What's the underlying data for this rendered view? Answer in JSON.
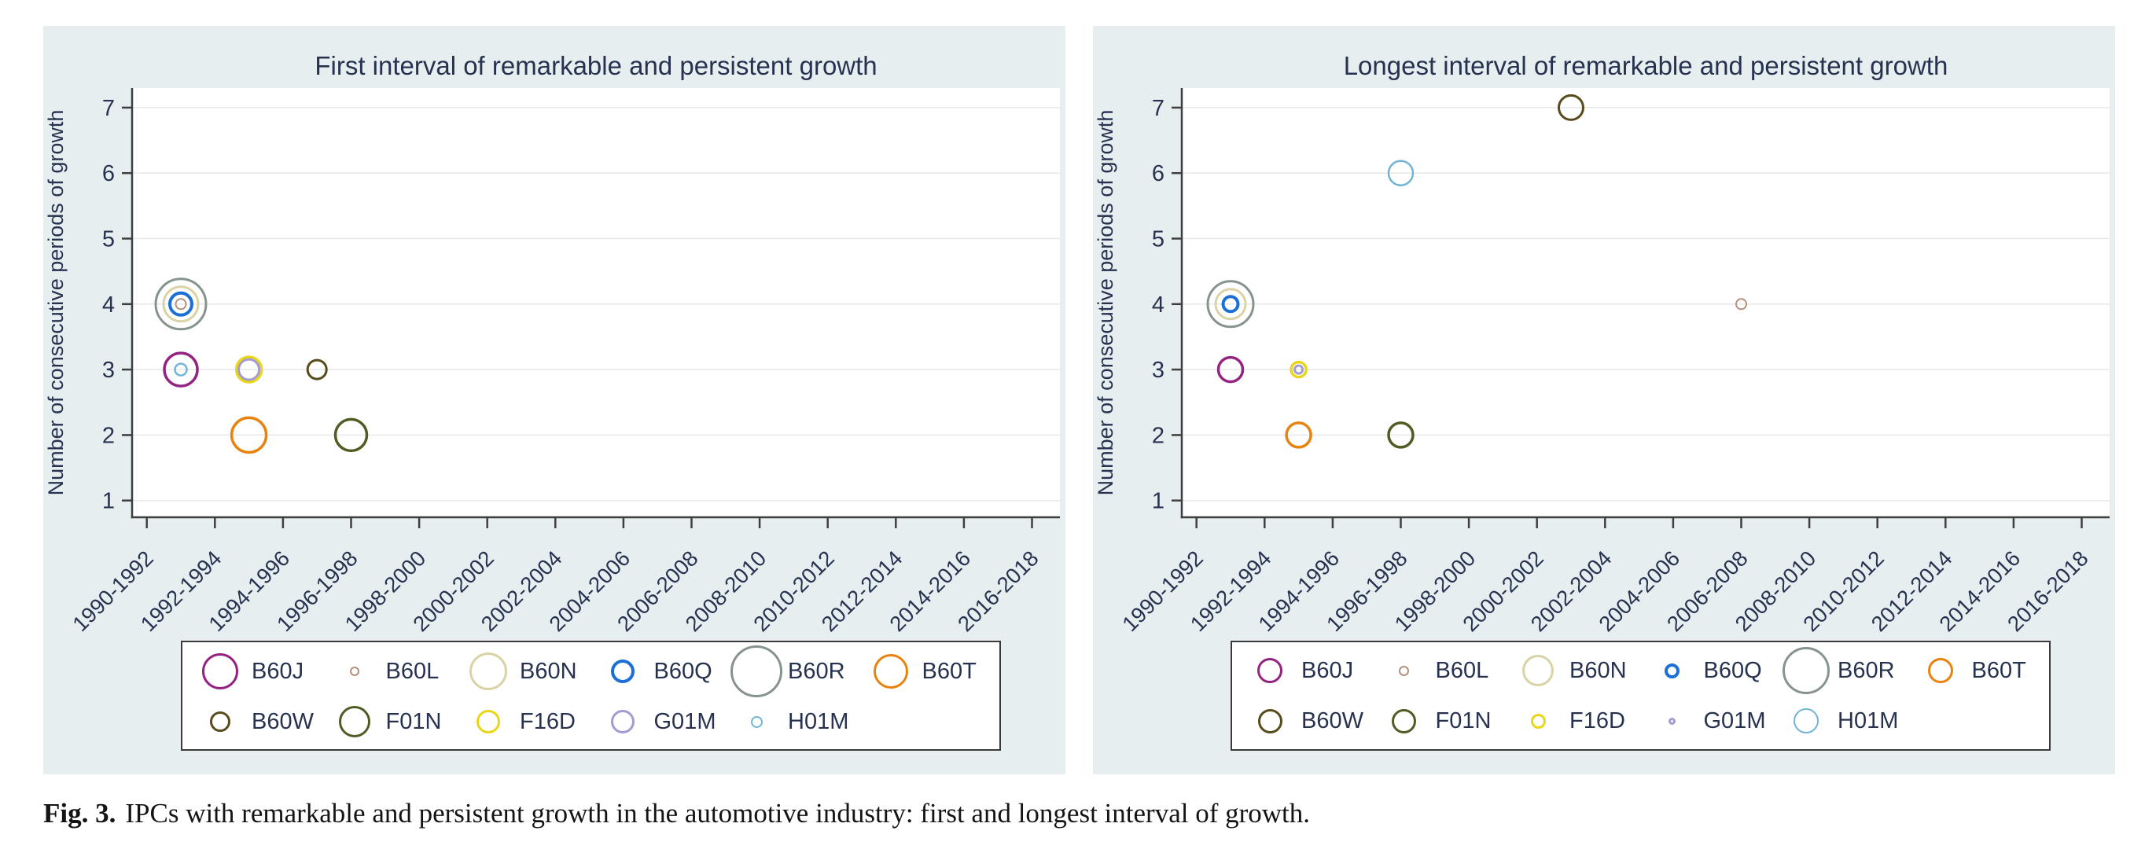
{
  "panel_style": {
    "background": "#e7eef0",
    "plot_background": "#ffffff",
    "grid_color": "#e5eae9",
    "axis_color": "#3f3f3f",
    "text_color": "#26324f",
    "legend_border_color": "#3a3a3a"
  },
  "ipc_styles": {
    "B60J": {
      "color": "#952382",
      "stroke": 3.5
    },
    "B60L": {
      "color": "#b3917f",
      "stroke": 2
    },
    "B60N": {
      "color": "#d9d3a5",
      "stroke": 3
    },
    "B60Q": {
      "color": "#1b6fd6",
      "stroke": 4
    },
    "B60R": {
      "color": "#87948d",
      "stroke": 3
    },
    "B60T": {
      "color": "#e8830f",
      "stroke": 3.5
    },
    "B60W": {
      "color": "#584c1d",
      "stroke": 3
    },
    "F01N": {
      "color": "#4f5d24",
      "stroke": 3.5
    },
    "F16D": {
      "color": "#ead618",
      "stroke": 3.5
    },
    "G01M": {
      "color": "#a39cd2",
      "stroke": 3
    },
    "H01M": {
      "color": "#70b5d6",
      "stroke": 2.5
    }
  },
  "chart_data": [
    {
      "type": "scatter",
      "title": "First interval of remarkable and persistent growth",
      "ylabel": "Number of consecutive periods of growth",
      "xlabel": "",
      "categories": [
        "1990-1992",
        "1992-1994",
        "1994-1996",
        "1996-1998",
        "1998-2000",
        "2000-2002",
        "2002-2004",
        "2004-2006",
        "2006-2008",
        "2008-2010",
        "2010-2012",
        "2012-2014",
        "2014-2016",
        "2016-2018"
      ],
      "y_ticks": [
        1,
        2,
        3,
        4,
        5,
        6,
        7
      ],
      "ylim": [
        0.74,
        7.3
      ],
      "grid": "horizontal",
      "legend_position": "bottom",
      "points": [
        {
          "ipc": "B60R",
          "x": 0.5,
          "y": 4,
          "d": 64
        },
        {
          "ipc": "B60N",
          "x": 0.5,
          "y": 4,
          "d": 44
        },
        {
          "ipc": "B60Q",
          "x": 0.5,
          "y": 4,
          "d": 28
        },
        {
          "ipc": "B60L",
          "x": 0.5,
          "y": 4,
          "d": 13
        },
        {
          "ipc": "B60J",
          "x": 0.5,
          "y": 3,
          "d": 42
        },
        {
          "ipc": "H01M",
          "x": 0.5,
          "y": 3,
          "d": 15
        },
        {
          "ipc": "F16D",
          "x": 1.5,
          "y": 3,
          "d": 32
        },
        {
          "ipc": "G01M",
          "x": 1.5,
          "y": 3,
          "d": 26
        },
        {
          "ipc": "B60W",
          "x": 2.5,
          "y": 3,
          "d": 24
        },
        {
          "ipc": "B60T",
          "x": 1.5,
          "y": 2,
          "d": 44
        },
        {
          "ipc": "F01N",
          "x": 3,
          "y": 2,
          "d": 40
        }
      ],
      "legend": [
        {
          "ipc": "B60J",
          "d": 46
        },
        {
          "ipc": "B60L",
          "d": 12
        },
        {
          "ipc": "B60N",
          "d": 48
        },
        {
          "ipc": "B60Q",
          "d": 30
        },
        {
          "ipc": "B60R",
          "d": 66
        },
        {
          "ipc": "B60T",
          "d": 44
        },
        {
          "ipc": "B60W",
          "d": 26
        },
        {
          "ipc": "F01N",
          "d": 40
        },
        {
          "ipc": "F16D",
          "d": 30
        },
        {
          "ipc": "G01M",
          "d": 30
        },
        {
          "ipc": "H01M",
          "d": 15
        }
      ]
    },
    {
      "type": "scatter",
      "title": "Longest interval of remarkable and persistent growth",
      "ylabel": "Number of consecutive periods of growth",
      "xlabel": "",
      "categories": [
        "1990-1992",
        "1992-1994",
        "1994-1996",
        "1996-1998",
        "1998-2000",
        "2000-2002",
        "2002-2004",
        "2004-2006",
        "2006-2008",
        "2008-2010",
        "2010-2012",
        "2012-2014",
        "2014-2016",
        "2016-2018"
      ],
      "y_ticks": [
        1,
        2,
        3,
        4,
        5,
        6,
        7
      ],
      "ylim": [
        0.74,
        7.3
      ],
      "grid": "horizontal",
      "legend_position": "bottom",
      "points": [
        {
          "ipc": "B60W",
          "x": 5.5,
          "y": 7,
          "d": 31
        },
        {
          "ipc": "H01M",
          "x": 3,
          "y": 6,
          "d": 31
        },
        {
          "ipc": "B60R",
          "x": 0.5,
          "y": 4,
          "d": 58
        },
        {
          "ipc": "B60N",
          "x": 0.5,
          "y": 4,
          "d": 38
        },
        {
          "ipc": "B60Q",
          "x": 0.5,
          "y": 4,
          "d": 19
        },
        {
          "ipc": "B60L",
          "x": 8,
          "y": 4,
          "d": 13
        },
        {
          "ipc": "B60J",
          "x": 0.5,
          "y": 3,
          "d": 31
        },
        {
          "ipc": "F16D",
          "x": 1.5,
          "y": 3,
          "d": 19
        },
        {
          "ipc": "G01M",
          "x": 1.5,
          "y": 3,
          "d": 10
        },
        {
          "ipc": "B60T",
          "x": 1.5,
          "y": 2,
          "d": 31
        },
        {
          "ipc": "F01N",
          "x": 3,
          "y": 2,
          "d": 31
        }
      ],
      "legend": [
        {
          "ipc": "B60J",
          "d": 32
        },
        {
          "ipc": "B60L",
          "d": 13
        },
        {
          "ipc": "B60N",
          "d": 40
        },
        {
          "ipc": "B60Q",
          "d": 19
        },
        {
          "ipc": "B60R",
          "d": 60
        },
        {
          "ipc": "B60T",
          "d": 32
        },
        {
          "ipc": "B60W",
          "d": 31
        },
        {
          "ipc": "F01N",
          "d": 31
        },
        {
          "ipc": "F16D",
          "d": 19
        },
        {
          "ipc": "G01M",
          "d": 9
        },
        {
          "ipc": "H01M",
          "d": 32
        }
      ]
    }
  ],
  "caption": {
    "label": "Fig. 3.",
    "text": "IPCs with remarkable and persistent growth in the automotive industry: first and longest interval of growth."
  }
}
